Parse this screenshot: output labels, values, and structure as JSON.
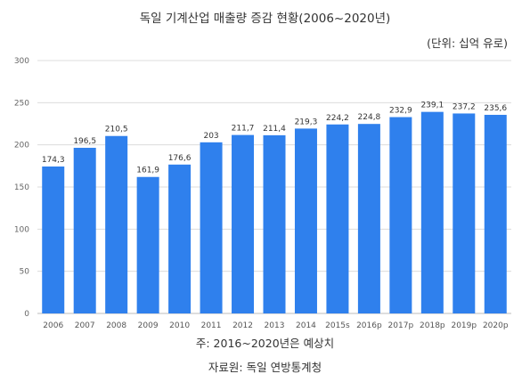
{
  "title": "독일 기계산업 매출량 증감 현황(2006~2020년)",
  "unit_label": "(단위: 십억 유로)",
  "footnote": "주: 2016~2020년은 예상치",
  "source": "자료원: 독일 연방통계청",
  "colors": {
    "bar": "#2F80ED",
    "grid": "#dcdcdc",
    "axis": "#bbbbbb"
  },
  "chart_data": {
    "type": "bar",
    "categories": [
      "2006",
      "2007",
      "2008",
      "2009",
      "2010",
      "2011",
      "2012",
      "2013",
      "2014",
      "2015s",
      "2016p",
      "2017p",
      "2018p",
      "2019p",
      "2020p"
    ],
    "values": [
      174.3,
      196.5,
      210.5,
      161.9,
      176.6,
      203,
      211.7,
      211.4,
      219.3,
      224.2,
      224.8,
      232.9,
      239.1,
      237.2,
      235.6
    ],
    "value_labels": [
      "174,3",
      "196,5",
      "210,5",
      "161,9",
      "176,6",
      "203",
      "211,7",
      "211,4",
      "219,3",
      "224,2",
      "224,8",
      "232,9",
      "239,1",
      "237,2",
      "235,6"
    ],
    "ylim": [
      0,
      300
    ],
    "yticks": [
      0,
      50,
      100,
      150,
      200,
      250,
      300
    ],
    "grid": true,
    "legend": "none"
  }
}
